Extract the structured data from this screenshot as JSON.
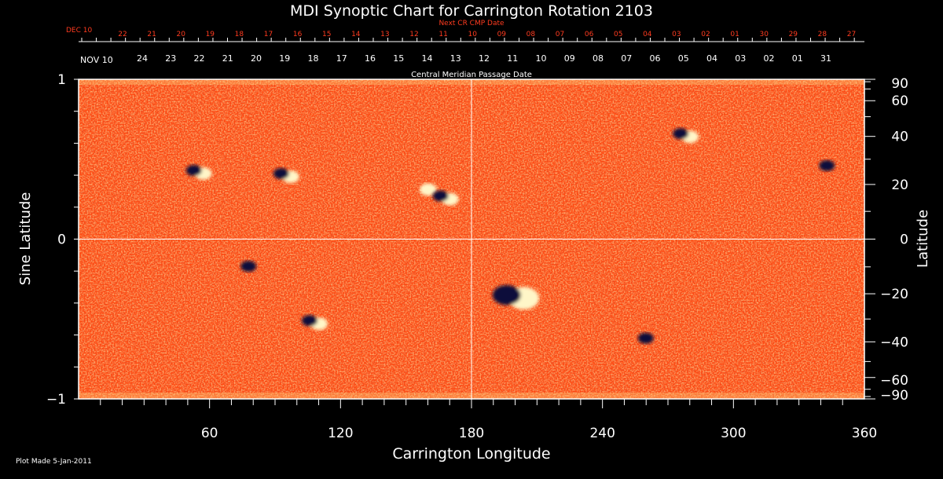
{
  "chart_data": {
    "type": "heatmap",
    "title": "MDI Synoptic Chart for Carrington Rotation 2103",
    "next_cr_label": "Next CR CMP Date",
    "next_cr_month": "DEC 10",
    "next_cr_dates": [
      "22",
      "21",
      "20",
      "19",
      "18",
      "17",
      "16",
      "15",
      "14",
      "13",
      "12",
      "11",
      "10",
      "09",
      "08",
      "07",
      "06",
      "05",
      "04",
      "03",
      "02",
      "01",
      "30",
      "29",
      "28",
      "27"
    ],
    "cmp_month": "NOV 10",
    "cmp_dates": [
      "24",
      "23",
      "22",
      "21",
      "20",
      "19",
      "18",
      "17",
      "16",
      "15",
      "14",
      "13",
      "12",
      "11",
      "10",
      "09",
      "08",
      "07",
      "06",
      "05",
      "04",
      "03",
      "02",
      "01",
      "31"
    ],
    "cmp_label": "Central Meridian Passage Date",
    "xlabel": "Carrington Longitude",
    "ylabel_left": "Sine Latitude",
    "ylabel_right": "Latitude",
    "xlim": [
      0,
      360
    ],
    "ylim": [
      -1,
      1
    ],
    "x_ticks": [
      60,
      120,
      180,
      240,
      300,
      360
    ],
    "x_tick_labels": [
      "60",
      "120",
      "180",
      "240",
      "300",
      "360"
    ],
    "y_left_ticks": [
      1,
      0,
      -1
    ],
    "y_left_tick_labels": [
      "1",
      "0",
      "−1"
    ],
    "lat_ticks": [
      90,
      60,
      40,
      20,
      0,
      -20,
      -40,
      -60,
      -90
    ],
    "lat_tick_labels": [
      "90",
      "60",
      "40",
      "20",
      "0",
      "−20",
      "−40",
      "−60",
      "−90"
    ],
    "guide_lines": {
      "longitude": 180,
      "sine_latitude": 0
    },
    "colors": {
      "background_field": "#ff4a12",
      "positive_polarity": "#fff6c8",
      "negative_polarity": "#0a0a3a",
      "date_red": "#ff3b1f"
    },
    "active_regions": [
      {
        "lon": 55,
        "sinlat": 0.42,
        "polarity": "mixed"
      },
      {
        "lon": 95,
        "sinlat": 0.4,
        "polarity": "mixed"
      },
      {
        "lon": 158,
        "sinlat": 0.32,
        "polarity": "positive"
      },
      {
        "lon": 168,
        "sinlat": 0.26,
        "polarity": "mixed"
      },
      {
        "lon": 278,
        "sinlat": 0.65,
        "polarity": "mixed"
      },
      {
        "lon": 345,
        "sinlat": 0.45,
        "polarity": "negative"
      },
      {
        "lon": 80,
        "sinlat": -0.18,
        "polarity": "negative"
      },
      {
        "lon": 108,
        "sinlat": -0.52,
        "polarity": "mixed"
      },
      {
        "lon": 200,
        "sinlat": -0.36,
        "polarity": "mixed"
      },
      {
        "lon": 262,
        "sinlat": -0.63,
        "polarity": "negative"
      }
    ]
  },
  "footer": {
    "plot_made": "Plot Made  5-Jan-2011"
  }
}
